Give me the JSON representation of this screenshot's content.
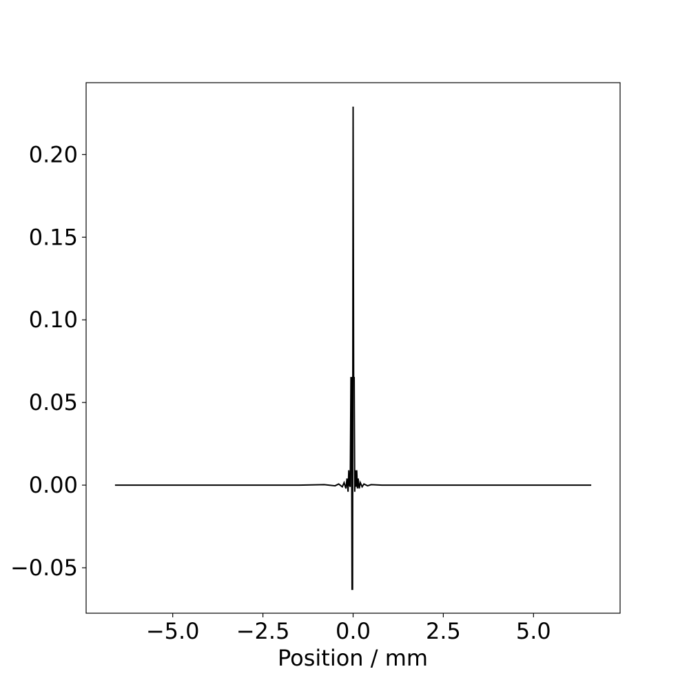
{
  "chart_data": {
    "type": "line",
    "title": "",
    "xlabel": "Position / mm",
    "ylabel": "",
    "xlim": [
      -7.4,
      7.4
    ],
    "ylim": [
      -0.0775,
      0.2435
    ],
    "xticks": [
      -5.0,
      -2.5,
      0.0,
      2.5,
      5.0
    ],
    "xtick_labels": [
      "−5.0",
      "−2.5",
      "0.0",
      "2.5",
      "5.0"
    ],
    "yticks": [
      -0.05,
      0.0,
      0.05,
      0.1,
      0.15,
      0.2
    ],
    "ytick_labels": [
      "−0.05",
      "0.00",
      "0.05",
      "0.10",
      "0.15",
      "0.20"
    ],
    "grid": false,
    "legend": "none",
    "series": [
      {
        "color": "#000000",
        "x": [
          -6.6,
          -3.0,
          -1.5,
          -0.8,
          -0.5,
          -0.4,
          -0.3,
          -0.25,
          -0.2,
          -0.17,
          -0.14,
          -0.12,
          -0.1,
          -0.08,
          -0.06,
          -0.045,
          -0.03,
          -0.015,
          0.0,
          0.015,
          0.03,
          0.045,
          0.06,
          0.08,
          0.1,
          0.12,
          0.14,
          0.17,
          0.2,
          0.25,
          0.3,
          0.4,
          0.5,
          0.8,
          1.5,
          3.0,
          6.6
        ],
        "y": [
          0.0,
          0.0,
          0.0,
          0.0003,
          -0.0004,
          0.0007,
          -0.001,
          0.0015,
          -0.002,
          0.004,
          -0.004,
          0.009,
          0.0,
          -0.001,
          0.065,
          0.065,
          -0.063,
          -0.063,
          0.229,
          0.065,
          0.065,
          -0.004,
          0.009,
          -0.001,
          0.009,
          -0.002,
          0.004,
          -0.002,
          0.0015,
          -0.001,
          0.0007,
          -0.0004,
          0.0003,
          0.0,
          0.0,
          0.0,
          0.0
        ]
      }
    ]
  }
}
